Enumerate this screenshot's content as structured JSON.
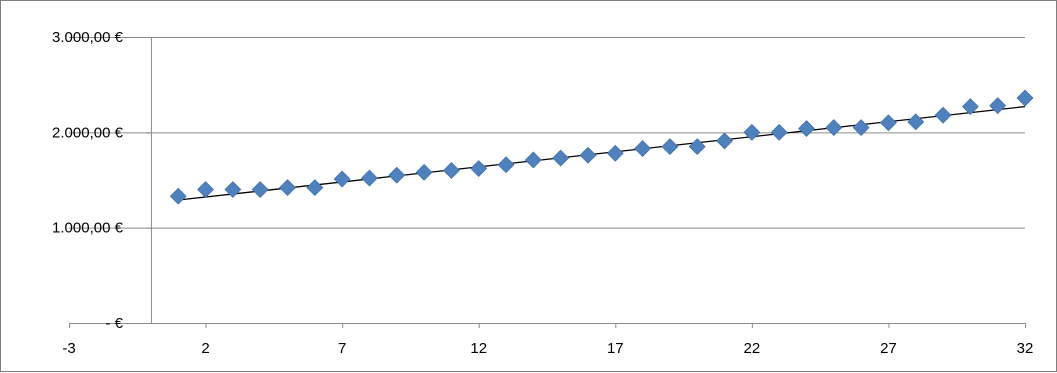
{
  "chart_data": {
    "type": "scatter",
    "title": "",
    "xlabel": "",
    "ylabel": "",
    "xlim": [
      -3,
      32
    ],
    "ylim": [
      0,
      3000
    ],
    "x_ticks": [
      -3,
      2,
      7,
      12,
      17,
      22,
      27,
      32
    ],
    "x_tick_labels": [
      "-3",
      "2",
      "7",
      "12",
      "17",
      "22",
      "27",
      "32"
    ],
    "y_ticks": [
      0,
      1000,
      2000,
      3000
    ],
    "y_tick_labels": [
      "-   €",
      "1.000,00 €",
      "2.000,00 €",
      "3.000,00 €"
    ],
    "grid": true,
    "legend": "none",
    "series": [
      {
        "marker": "diamond",
        "color": "#4F81BD",
        "x": [
          1,
          2,
          3,
          4,
          5,
          6,
          7,
          8,
          9,
          10,
          11,
          12,
          13,
          14,
          15,
          16,
          17,
          18,
          19,
          20,
          21,
          22,
          23,
          24,
          25,
          26,
          27,
          28,
          29,
          30,
          31,
          32
        ],
        "y": [
          1330,
          1400,
          1400,
          1400,
          1420,
          1420,
          1510,
          1520,
          1550,
          1580,
          1600,
          1620,
          1660,
          1710,
          1730,
          1760,
          1780,
          1830,
          1850,
          1850,
          1910,
          2000,
          2000,
          2040,
          2050,
          2050,
          2100,
          2110,
          2180,
          2270,
          2280,
          2360
        ]
      }
    ],
    "trendline": {
      "type": "linear",
      "color": "#000000",
      "x": [
        1,
        32
      ],
      "y": [
        1290,
        2270
      ]
    }
  }
}
